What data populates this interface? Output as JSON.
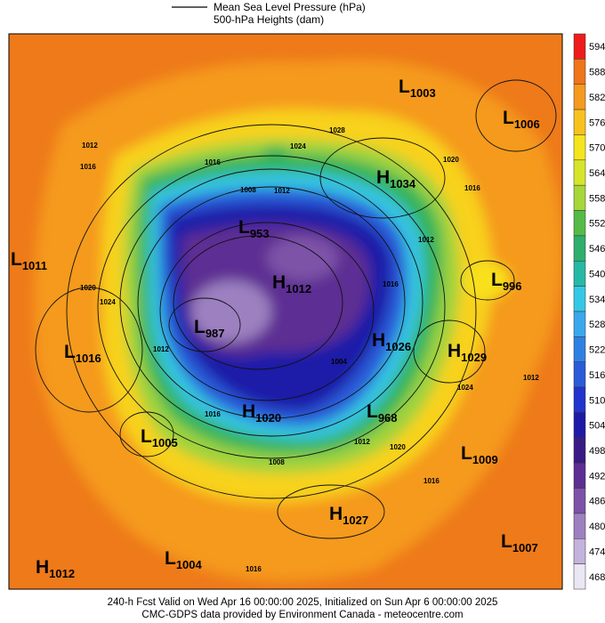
{
  "header": {
    "legend_mslp": "Mean Sea Level Pressure (hPa)",
    "legend_heights": "500-hPa Heights (dam)"
  },
  "colorbar": {
    "levels": [
      "594",
      "588",
      "582",
      "576",
      "570",
      "564",
      "558",
      "552",
      "546",
      "540",
      "534",
      "528",
      "522",
      "516",
      "510",
      "504",
      "498",
      "492",
      "486",
      "480",
      "474",
      "468"
    ],
    "colors": [
      "#ee1c1c",
      "#f0741a",
      "#f59a1f",
      "#f8c21e",
      "#f5e51e",
      "#d7e52a",
      "#a6d63a",
      "#54bb47",
      "#2fae6c",
      "#26b9a6",
      "#35c8e6",
      "#3aa7ec",
      "#2f80e3",
      "#2a5bd9",
      "#2234cd",
      "#1e1aa8",
      "#3a1b86",
      "#5d2e93",
      "#7d52a8",
      "#9c80c0",
      "#c3b2db",
      "#ebe6f3"
    ]
  },
  "centers": [
    {
      "letter": "L",
      "value": "1003"
    },
    {
      "letter": "L",
      "value": "1006"
    },
    {
      "letter": "H",
      "value": "1034"
    },
    {
      "letter": "L",
      "value": "953"
    },
    {
      "letter": "H",
      "value": "1012"
    },
    {
      "letter": "L",
      "value": "1011"
    },
    {
      "letter": "L",
      "value": "996"
    },
    {
      "letter": "L",
      "value": "987"
    },
    {
      "letter": "H",
      "value": "1026"
    },
    {
      "letter": "H",
      "value": "1029"
    },
    {
      "letter": "L",
      "value": "1016"
    },
    {
      "letter": "H",
      "value": "1020"
    },
    {
      "letter": "L",
      "value": "968"
    },
    {
      "letter": "L",
      "value": "1005"
    },
    {
      "letter": "L",
      "value": "1009"
    },
    {
      "letter": "H",
      "value": "1027"
    },
    {
      "letter": "L",
      "value": "1007"
    },
    {
      "letter": "H",
      "value": "1012"
    },
    {
      "letter": "L",
      "value": "1004"
    }
  ],
  "contour_labels": [
    "1012",
    "1016",
    "1016",
    "1008",
    "1012",
    "1024",
    "1028",
    "1020",
    "1016",
    "1012",
    "1016",
    "1020",
    "1024",
    "1012",
    "1016",
    "1004",
    "1012",
    "1020",
    "1024",
    "1012",
    "1016",
    "1016",
    "1008"
  ],
  "footer": {
    "line1": "240-h Fcst Valid on Wed Apr 16 00:00:00 2025, Initialized on Sun Apr  6 00:00:00 2025",
    "line2": "CMC-GDPS data provided by Environment Canada - meteocentre.com"
  }
}
